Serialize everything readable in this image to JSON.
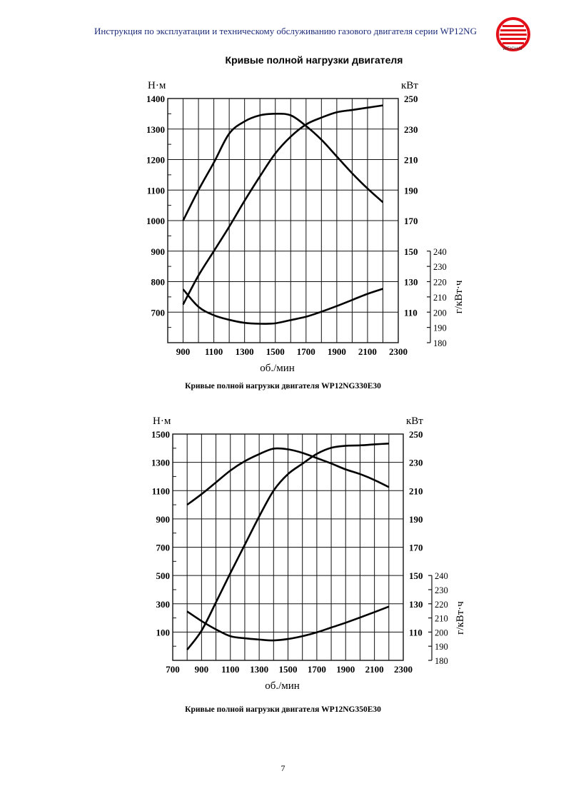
{
  "header": {
    "text": "Инструкция по эксплуатации и техническому обслуживанию газового двигателя серии WP12NG",
    "logo_text": "WEICHAI",
    "logo_color": "#e3101a",
    "text_color": "#1c2a78"
  },
  "section_title": "Кривые полной нагрузки двигателя",
  "page_number": "7",
  "chart_data": [
    {
      "type": "line",
      "caption": "Кривые полной нагрузки двигателя WP12NG330E30",
      "xlabel": "об./мин",
      "ylabel_left": "Н·м",
      "ylabel_right": "кВт",
      "ylabel_bsfc": "г/кВт·ч",
      "xlim": [
        800,
        2300
      ],
      "xticks": [
        900,
        1100,
        1300,
        1500,
        1700,
        1900,
        2100,
        2300
      ],
      "ylim_left": [
        600,
        1400
      ],
      "yticks_left": [
        1400,
        1300,
        1200,
        1100,
        1000,
        900,
        800,
        700
      ],
      "ylim_right": [
        90,
        250
      ],
      "yticks_right": [
        250,
        230,
        210,
        190,
        170,
        150,
        130,
        110
      ],
      "ylim_bsfc": [
        180,
        240
      ],
      "yticks_bsfc": [
        240,
        230,
        220,
        210,
        200,
        190,
        180
      ],
      "grid": true,
      "x": [
        900,
        1000,
        1100,
        1200,
        1300,
        1400,
        1500,
        1600,
        1700,
        1800,
        1900,
        2000,
        2100,
        2200
      ],
      "series": [
        {
          "name": "torque",
          "axis": "left",
          "values": [
            1000,
            1100,
            1190,
            1285,
            1325,
            1345,
            1350,
            1345,
            1310,
            1265,
            1210,
            1155,
            1105,
            1060
          ]
        },
        {
          "name": "power",
          "axis": "right",
          "values": [
            115,
            134,
            150,
            166,
            183,
            199,
            214,
            225,
            233,
            237.5,
            241,
            242.5,
            244,
            245.5
          ]
        },
        {
          "name": "bsfc",
          "axis": "bsfc",
          "values": [
            215,
            203.5,
            198,
            195,
            193,
            192.4,
            192.7,
            194.8,
            197,
            200.3,
            204,
            208,
            212,
            215.3
          ]
        }
      ]
    },
    {
      "type": "line",
      "caption": "Кривые полной нагрузки двигателя WP12NG350E30",
      "xlabel": "об./мин",
      "ylabel_left": "Н·м",
      "ylabel_right": "кВт",
      "ylabel_bsfc": "г/кВт·ч",
      "xlim": [
        700,
        2300
      ],
      "xticks": [
        700,
        900,
        1100,
        1300,
        1500,
        1700,
        1900,
        2100,
        2300
      ],
      "ylim_left": [
        -100,
        1500
      ],
      "yticks_left": [
        1500,
        1300,
        1100,
        900,
        700,
        500,
        300,
        100
      ],
      "ylim_right": [
        90,
        250
      ],
      "yticks_right": [
        250,
        230,
        210,
        190,
        170,
        150,
        130,
        110
      ],
      "ylim_bsfc": [
        180,
        240
      ],
      "yticks_bsfc": [
        240,
        230,
        220,
        210,
        200,
        190,
        180
      ],
      "grid": true,
      "x": [
        800,
        900,
        1000,
        1100,
        1200,
        1300,
        1400,
        1500,
        1600,
        1700,
        1800,
        1900,
        2000,
        2100,
        2200
      ],
      "series": [
        {
          "name": "torque",
          "axis": "left",
          "values": [
            1000,
            1075,
            1158,
            1242,
            1308,
            1358,
            1397,
            1392,
            1367,
            1330,
            1292,
            1250,
            1217,
            1175,
            1125
          ]
        },
        {
          "name": "power",
          "axis": "right",
          "values": [
            97.5,
            111,
            131,
            151.7,
            171.7,
            191.7,
            210,
            221.7,
            229,
            236,
            240.3,
            241.7,
            242,
            242.7,
            243.3
          ]
        },
        {
          "name": "bsfc",
          "axis": "bsfc",
          "values": [
            214.6,
            207.8,
            201.9,
            197.1,
            195.6,
            194.7,
            194.1,
            195.1,
            197.1,
            199.8,
            203.2,
            206.6,
            210.3,
            214.1,
            218
          ]
        }
      ]
    }
  ]
}
